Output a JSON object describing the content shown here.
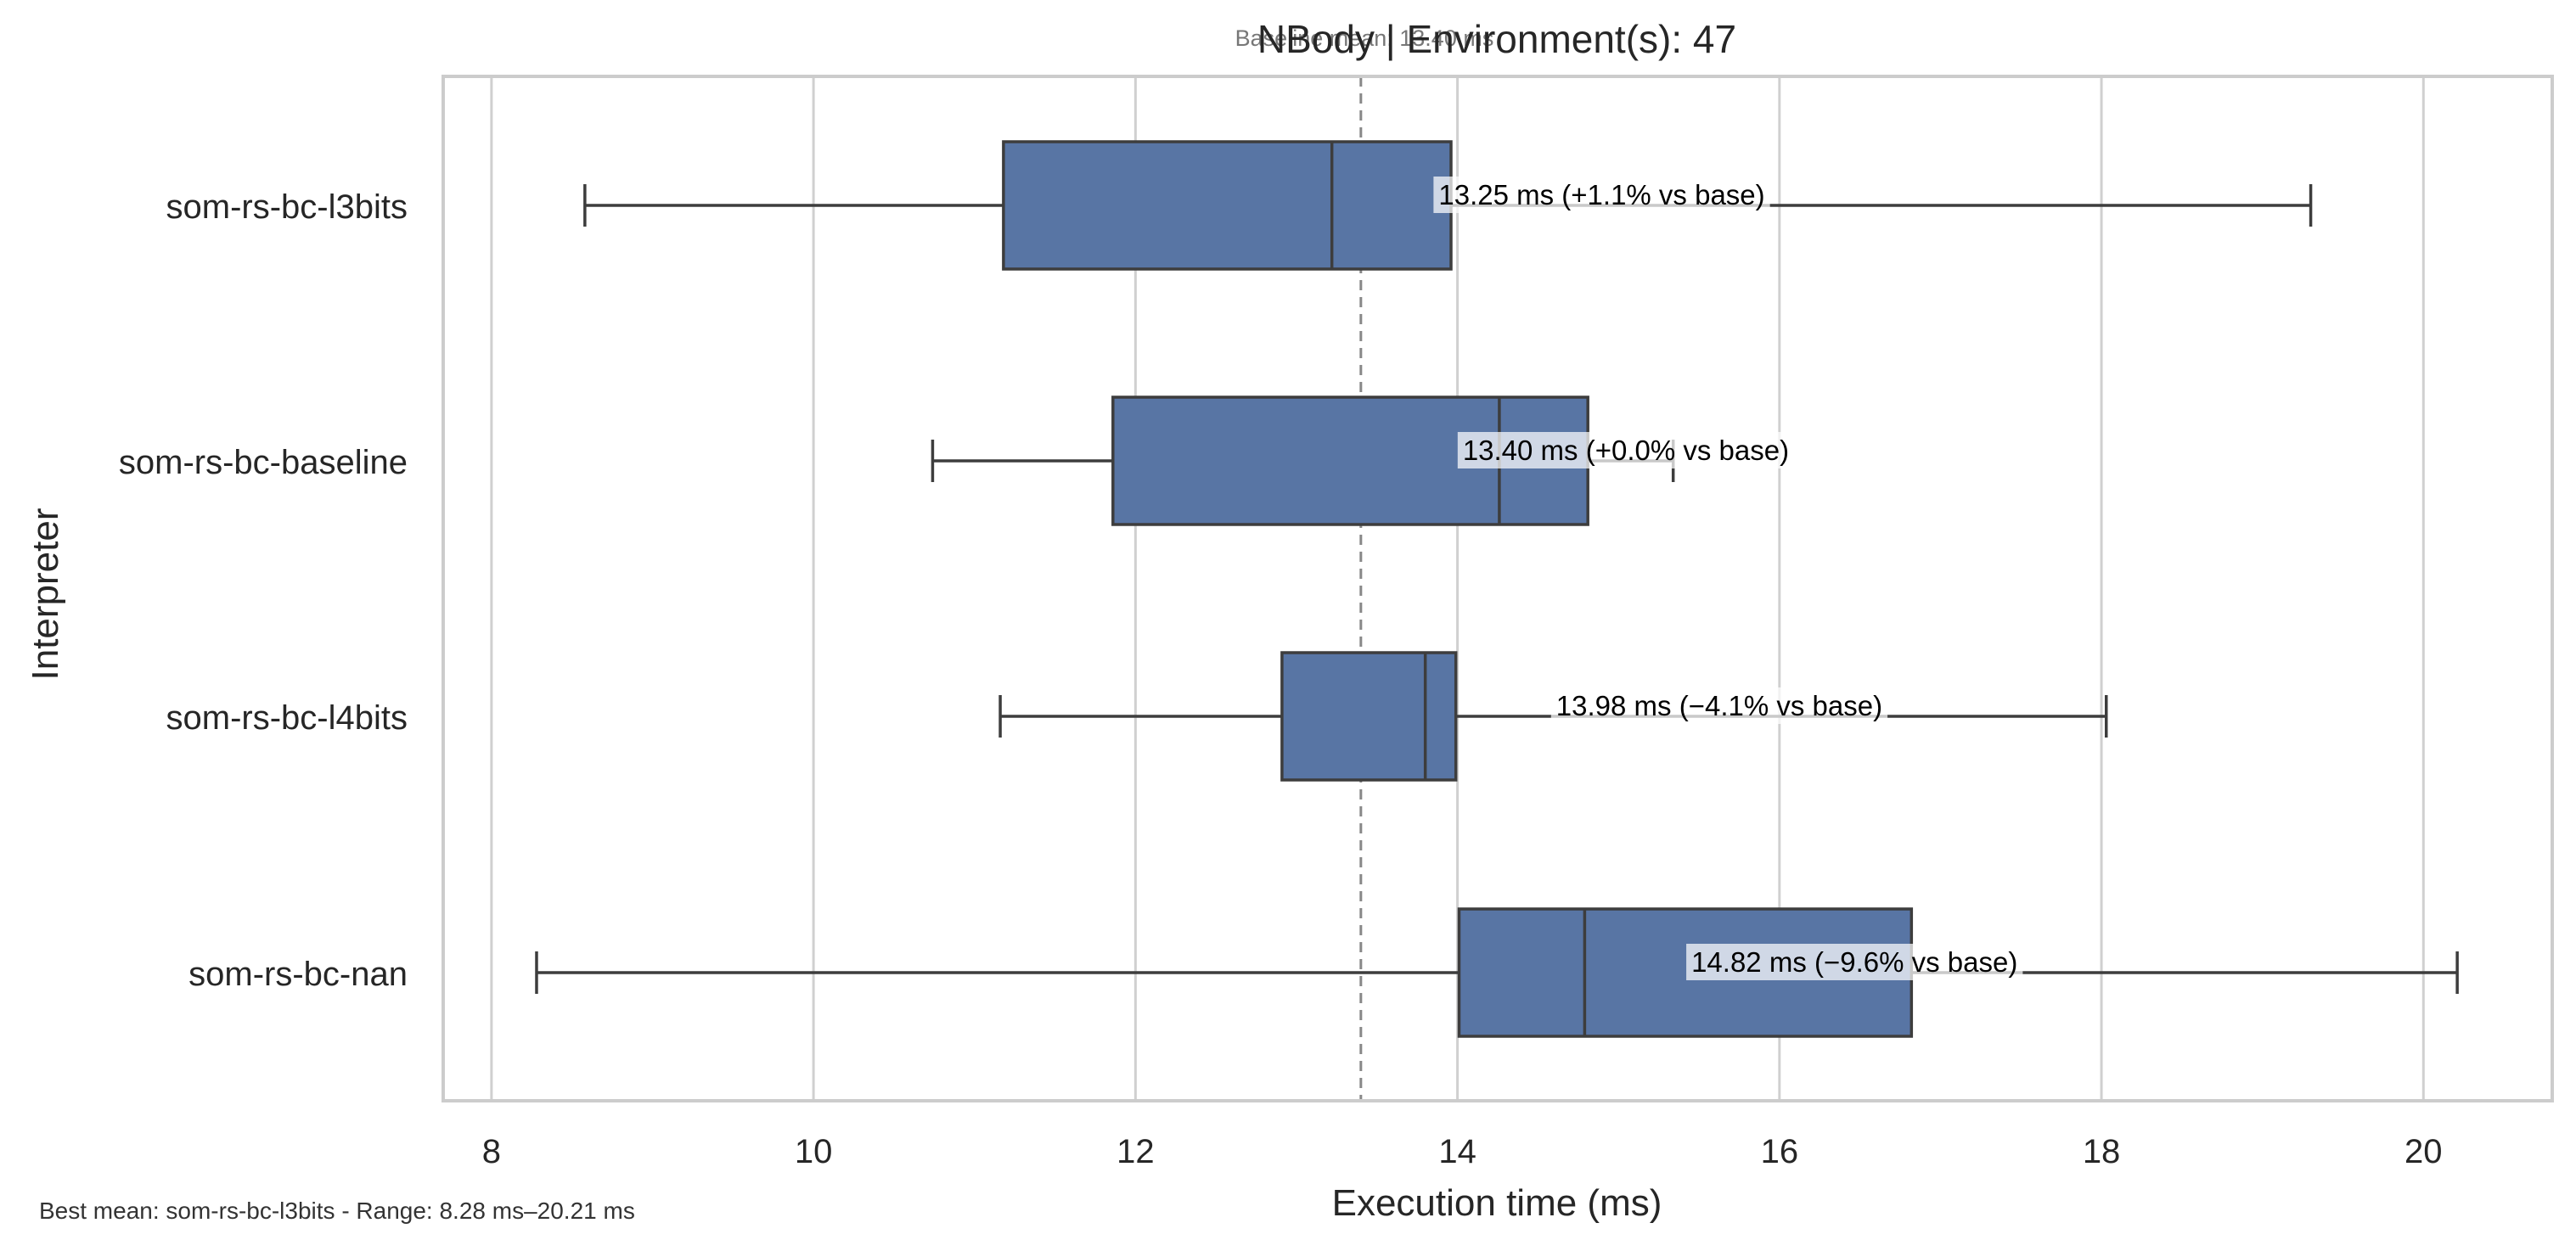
{
  "chart_data": {
    "type": "boxplot",
    "orientation": "horizontal",
    "title": "NBody | Environment(s): 47",
    "baseline_note": "Baseline mean: 13.40 ms",
    "xlabel": "Execution time (ms)",
    "ylabel": "Interpreter",
    "footnote": "Best mean: som-rs-bc-l3bits - Range: 8.28 ms–20.21 ms",
    "xlim": [
      7.7,
      20.8
    ],
    "xticks": [
      8,
      10,
      12,
      14,
      16,
      18,
      20
    ],
    "baseline_value": 13.4,
    "grid": true,
    "box_color": "#5875a4",
    "edge_color": "#3d3d3d",
    "series": [
      {
        "name": "som-rs-bc-l3bits",
        "whisker_low": 8.58,
        "q1": 11.18,
        "median": 13.22,
        "q3": 13.96,
        "whisker_high": 19.3,
        "mean": 13.25,
        "label": "13.25 ms  (+1.1% vs base)"
      },
      {
        "name": "som-rs-bc-baseline",
        "whisker_low": 10.74,
        "q1": 11.86,
        "median": 14.26,
        "q3": 14.81,
        "whisker_high": 15.34,
        "mean": 13.4,
        "label": "13.40 ms  (+0.0% vs base)"
      },
      {
        "name": "som-rs-bc-l4bits",
        "whisker_low": 11.16,
        "q1": 12.91,
        "median": 13.8,
        "q3": 13.99,
        "whisker_high": 18.03,
        "mean": 13.98,
        "label": "13.98 ms  (−4.1% vs base)"
      },
      {
        "name": "som-rs-bc-nan",
        "whisker_low": 8.28,
        "q1": 14.01,
        "median": 14.79,
        "q3": 16.82,
        "whisker_high": 20.21,
        "mean": 14.82,
        "label": "14.82 ms  (−9.6% vs base)"
      }
    ]
  }
}
